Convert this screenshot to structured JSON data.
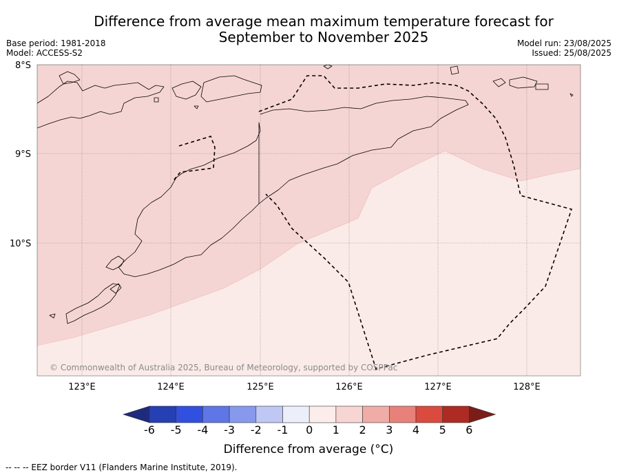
{
  "header": {
    "title_line1": "Difference from average mean maximum temperature forecast for",
    "title_line2": "September to November 2025",
    "base_period": "Base period: 1981-2018",
    "model": "Model: ACCESS-S2",
    "model_run": "Model run: 23/08/2025",
    "issued": "Issued: 25/08/2025"
  },
  "map": {
    "lat_labels": [
      "8°S",
      "9°S",
      "10°S"
    ],
    "lon_labels": [
      "123°E",
      "124°E",
      "125°E",
      "126°E",
      "127°E",
      "128°E"
    ],
    "copyright": "© Commonwealth of Australia 2025, Bureau of Meteorology, supported by COSPPac",
    "fill_colors": {
      "zone_1_to_2": "#f5d5d3",
      "zone_0_to_1": "#fbebe8"
    }
  },
  "colorbar": {
    "ticks": [
      "-6",
      "-5",
      "-4",
      "-3",
      "-2",
      "-1",
      "0",
      "1",
      "2",
      "3",
      "4",
      "5",
      "6"
    ],
    "colors": [
      "#1d2a7d",
      "#263fb3",
      "#3250e0",
      "#5f76e6",
      "#8799ec",
      "#bfc8f4",
      "#eceef9",
      "#fcedeb",
      "#f6d5d3",
      "#f0aca7",
      "#e7817a",
      "#db4a3f",
      "#ad2b22",
      "#7a1d18"
    ],
    "label": "Difference from average (°C)"
  },
  "footnote": "-- -- -- EEZ border V11 (Flanders Marine Institute, 2019)."
}
